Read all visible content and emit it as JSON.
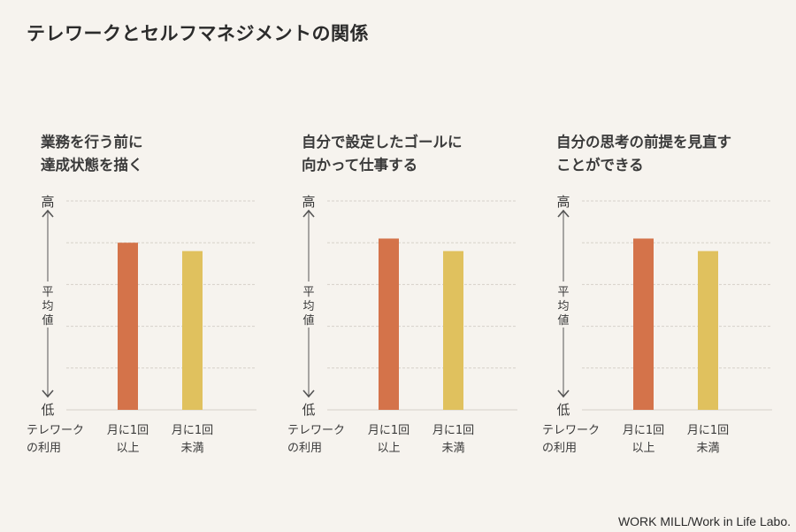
{
  "page": {
    "title": "テレワークとセルフマネジメントの関係",
    "credit": "WORK  MILL/Work in Life Labo."
  },
  "colors": {
    "background": "#f6f3ee",
    "bar_frequent": "#d4734a",
    "bar_infrequent": "#e0c15e",
    "grid": "#d6d1c9",
    "axis": "#555555"
  },
  "chart_data": [
    {
      "type": "bar",
      "title": "業務を行う前に\n達成状態を描く",
      "axis_top_label": "高",
      "axis_bottom_label": "低",
      "ylabel": "平均値",
      "xlabel": "テレワーク\nの利用",
      "categories": [
        "月に1回\n以上",
        "月に1回\n未満"
      ],
      "values": [
        0.8,
        0.76
      ],
      "ylim": [
        0,
        1
      ],
      "grid": true
    },
    {
      "type": "bar",
      "title": "自分で設定したゴールに\n向かって仕事する",
      "axis_top_label": "高",
      "axis_bottom_label": "低",
      "ylabel": "平均値",
      "xlabel": "テレワーク\nの利用",
      "categories": [
        "月に1回\n以上",
        "月に1回\n未満"
      ],
      "values": [
        0.82,
        0.76
      ],
      "ylim": [
        0,
        1
      ],
      "grid": true
    },
    {
      "type": "bar",
      "title": "自分の思考の前提を見直す\nことができる",
      "axis_top_label": "高",
      "axis_bottom_label": "低",
      "ylabel": "平均値",
      "xlabel": "テレワーク\nの利用",
      "categories": [
        "月に1回\n以上",
        "月に1回\n未満"
      ],
      "values": [
        0.82,
        0.76
      ],
      "ylim": [
        0,
        1
      ],
      "grid": true
    }
  ]
}
